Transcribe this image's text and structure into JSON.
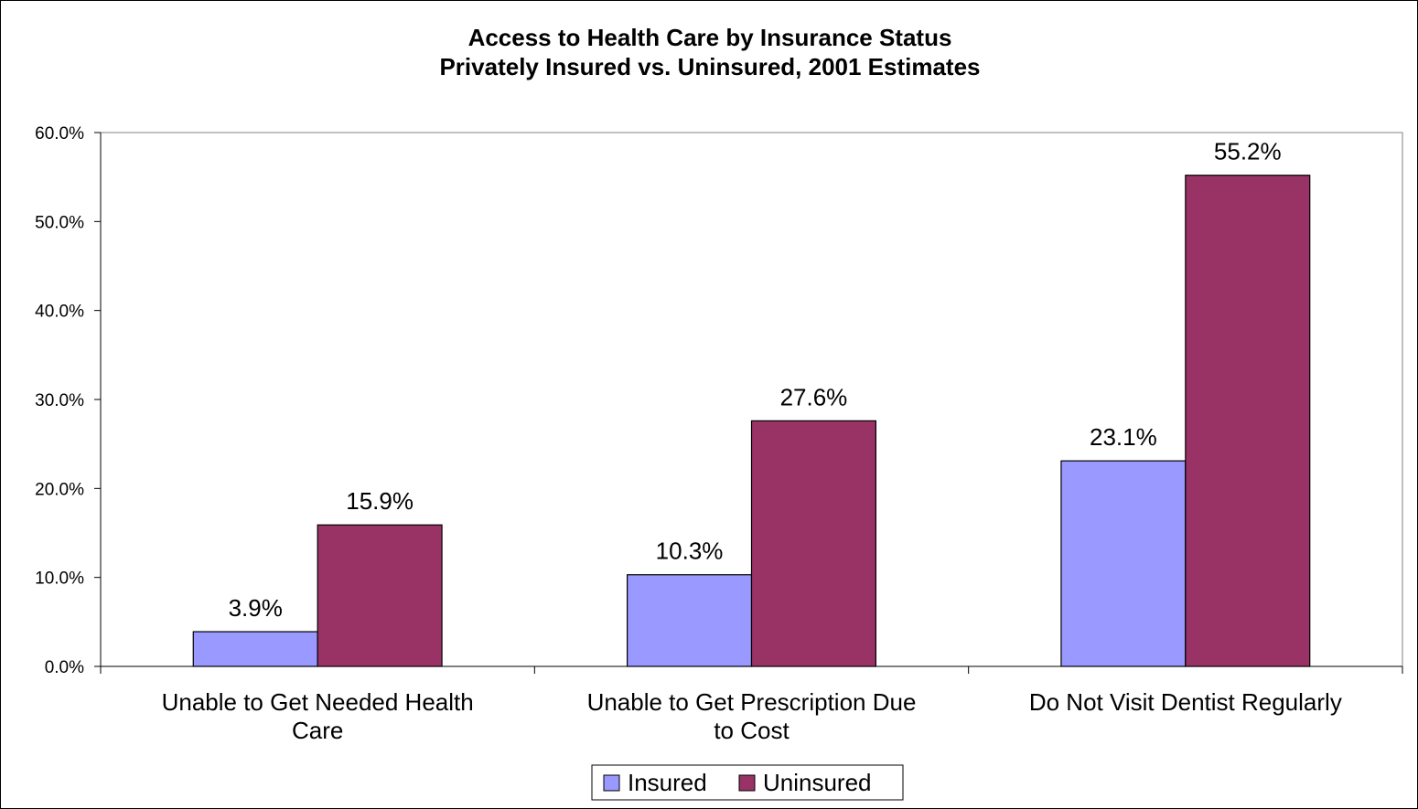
{
  "chart_data": {
    "type": "bar",
    "title": "Access to Health Care by Insurance Status",
    "subtitle": "Privately Insured vs. Uninsured, 2001 Estimates",
    "categories": [
      [
        "Unable to Get Needed Health",
        "Care"
      ],
      [
        "Unable to Get Prescription Due",
        "to Cost"
      ],
      [
        "Do Not Visit Dentist Regularly"
      ]
    ],
    "series": [
      {
        "name": "Insured",
        "values": [
          3.9,
          10.3,
          23.1
        ],
        "labels": [
          "3.9%",
          "10.3%",
          "23.1%"
        ],
        "color": "#9999ff"
      },
      {
        "name": "Uninsured",
        "values": [
          15.9,
          27.6,
          55.2
        ],
        "labels": [
          "15.9%",
          "27.6%",
          "55.2%"
        ],
        "color": "#993366"
      }
    ],
    "yticks": [
      "0.0%",
      "10.0%",
      "20.0%",
      "30.0%",
      "40.0%",
      "50.0%",
      "60.0%"
    ],
    "ylim": [
      0,
      60
    ],
    "grid": false,
    "legend_position": "bottom"
  }
}
